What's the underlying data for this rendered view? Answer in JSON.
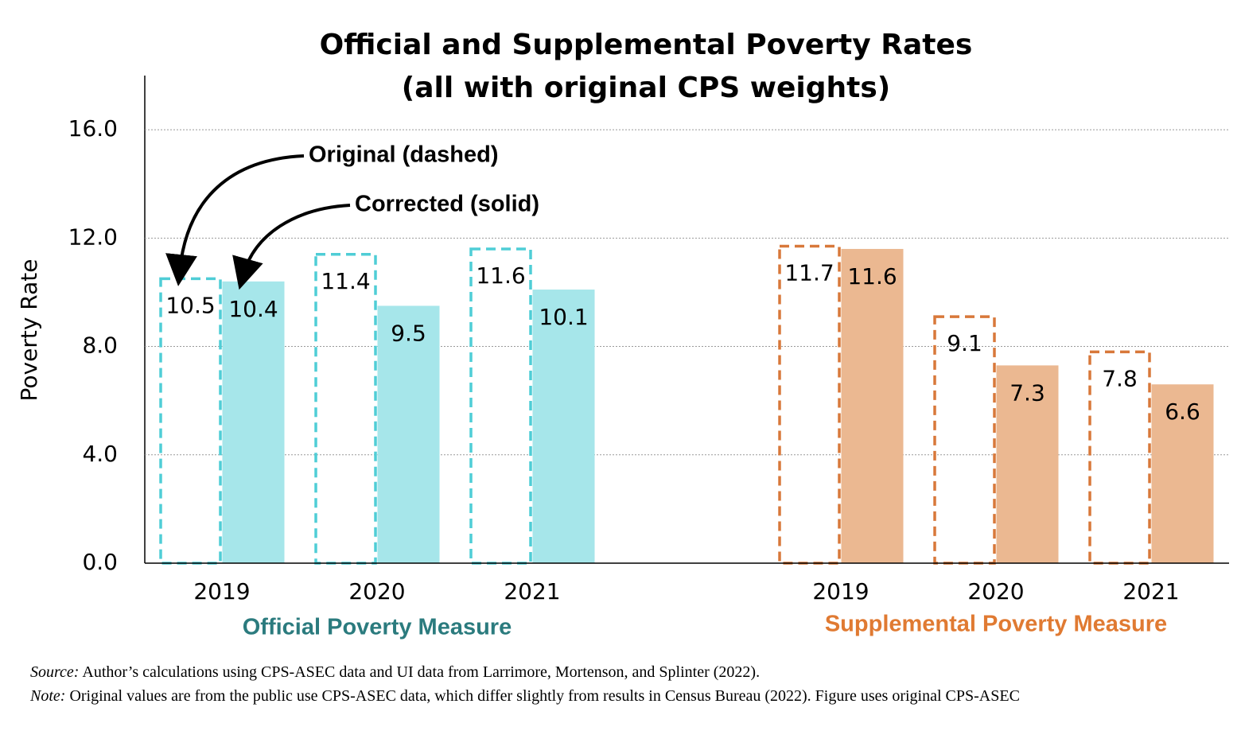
{
  "chart_data": {
    "type": "bar",
    "title": [
      "Official and Supplemental Poverty Rates",
      "(all with original CPS weights)"
    ],
    "y_label": "Poverty Rate",
    "ylim": [
      0,
      18
    ],
    "yticks": [
      {
        "value": 0,
        "label": "0.0"
      },
      {
        "value": 4,
        "label": "4.0"
      },
      {
        "value": 8,
        "label": "8.0"
      },
      {
        "value": 12,
        "label": "12.0"
      },
      {
        "value": 16,
        "label": "16.0"
      }
    ],
    "grid": true,
    "groups": [
      {
        "label": "Official Poverty Measure",
        "label_color": "#2b7b7e",
        "categories": [
          "2019",
          "2020",
          "2021"
        ],
        "series": [
          {
            "name": "Original (dashed)",
            "style": "dashed",
            "color": "#4fcdd6",
            "values": [
              10.5,
              11.4,
              11.6
            ]
          },
          {
            "name": "Corrected (solid)",
            "style": "solid",
            "color": "#a6e6ea",
            "values": [
              10.4,
              9.5,
              10.1
            ]
          }
        ]
      },
      {
        "label": "Supplemental Poverty Measure",
        "label_color": "#e07a32",
        "categories": [
          "2019",
          "2020",
          "2021"
        ],
        "series": [
          {
            "name": "Original (dashed)",
            "style": "dashed",
            "color": "#d8783a",
            "values": [
              11.7,
              9.1,
              7.8
            ]
          },
          {
            "name": "Corrected (solid)",
            "style": "solid",
            "color": "#ebb891",
            "values": [
              11.6,
              7.3,
              6.6
            ]
          }
        ]
      }
    ]
  },
  "footer": {
    "source_label": "Source:",
    "source_text": "Author’s calculations using CPS-ASEC data and UI data from Larrimore, Mortenson, and Splinter (2022).",
    "note_label": "Note:",
    "note_text": "Original values are from the public use CPS-ASEC data, which differ slightly from results in Census Bureau (2022). Figure uses original CPS-ASEC"
  }
}
